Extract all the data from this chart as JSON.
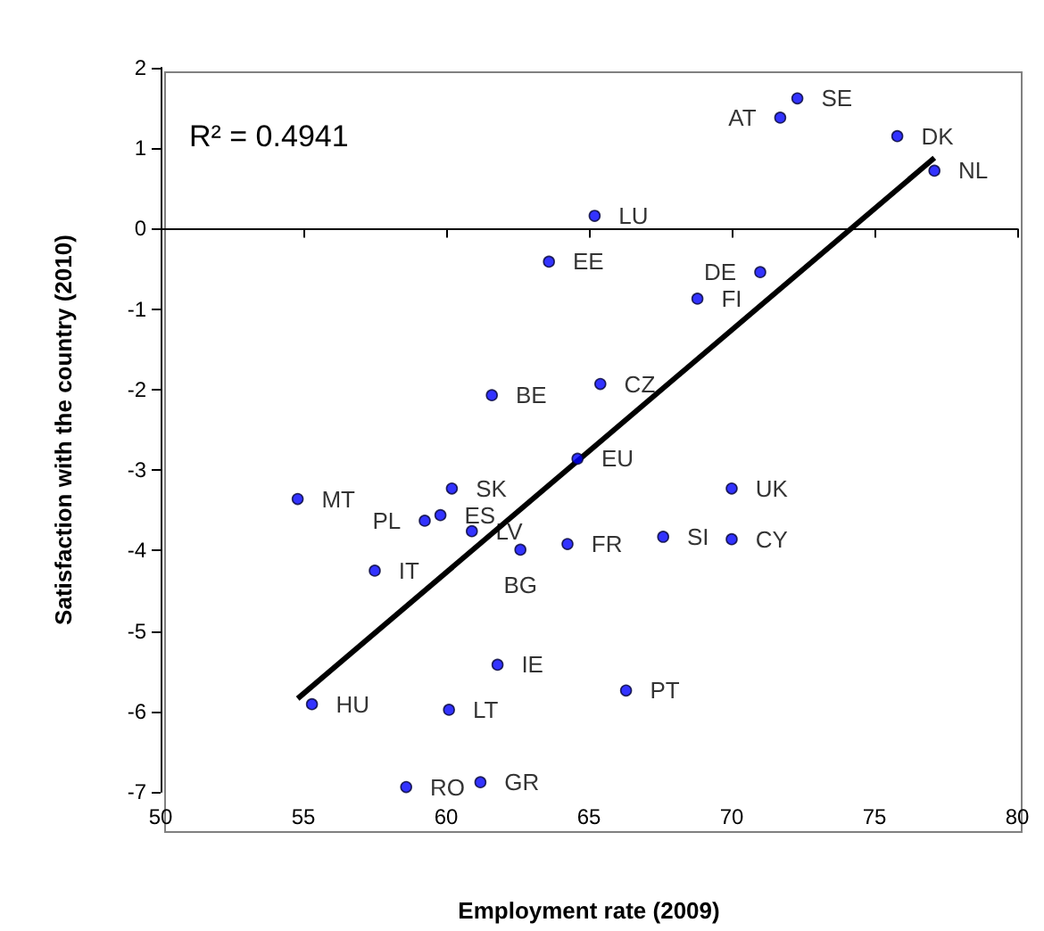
{
  "chart_data": {
    "type": "scatter",
    "xlabel": "Employment rate (2009)",
    "ylabel": "Satisfaction with the country (2010)",
    "annotations": [
      "R² = 0.4941"
    ],
    "xlim": [
      50,
      80
    ],
    "xticks": [
      50,
      55,
      60,
      65,
      70,
      75,
      80
    ],
    "ylim": [
      -7,
      2
    ],
    "yticks": [
      -7,
      -6,
      -5,
      -4,
      -3,
      -2,
      -1,
      0,
      1,
      2
    ],
    "marker": "circle",
    "series": [
      {
        "color": "#0000ff",
        "x": [
          72.3,
          71.7,
          75.8,
          77.1,
          65.2,
          63.6,
          71.0,
          68.8,
          61.6,
          65.4,
          64.6,
          60.2,
          54.8,
          59.25,
          59.8,
          60.9,
          62.6,
          64.25,
          67.6,
          70.0,
          70.0,
          57.5,
          61.8,
          66.3,
          55.3,
          60.1,
          58.6,
          61.2
        ],
        "values": [
          1.62,
          1.38,
          1.15,
          0.72,
          0.16,
          -0.41,
          -0.54,
          -0.87,
          -2.07,
          -1.93,
          -2.86,
          -3.23,
          -3.36,
          -3.63,
          -3.56,
          -3.76,
          -3.99,
          -3.92,
          -3.83,
          -3.86,
          -3.23,
          -4.25,
          -5.42,
          -5.74,
          -5.91,
          -5.98,
          -6.94,
          -6.88
        ],
        "value_labels": [
          "SE",
          "AT",
          "DK",
          "NL",
          "LU",
          "EE",
          "DE",
          "FI",
          "BE",
          "CZ",
          "EU",
          "SK",
          "MT",
          "PL",
          "ES",
          "LV",
          "BG",
          "FR",
          "SI",
          "CY",
          "UK",
          "IT",
          "IE",
          "PT",
          "HU",
          "LT",
          "RO",
          "GR"
        ]
      },
      {
        "type": "line",
        "color": "#000000",
        "line_style": "solid",
        "marker": "none",
        "x": [
          54.8,
          77.1
        ],
        "values": [
          -5.84,
          0.88
        ]
      }
    ]
  }
}
